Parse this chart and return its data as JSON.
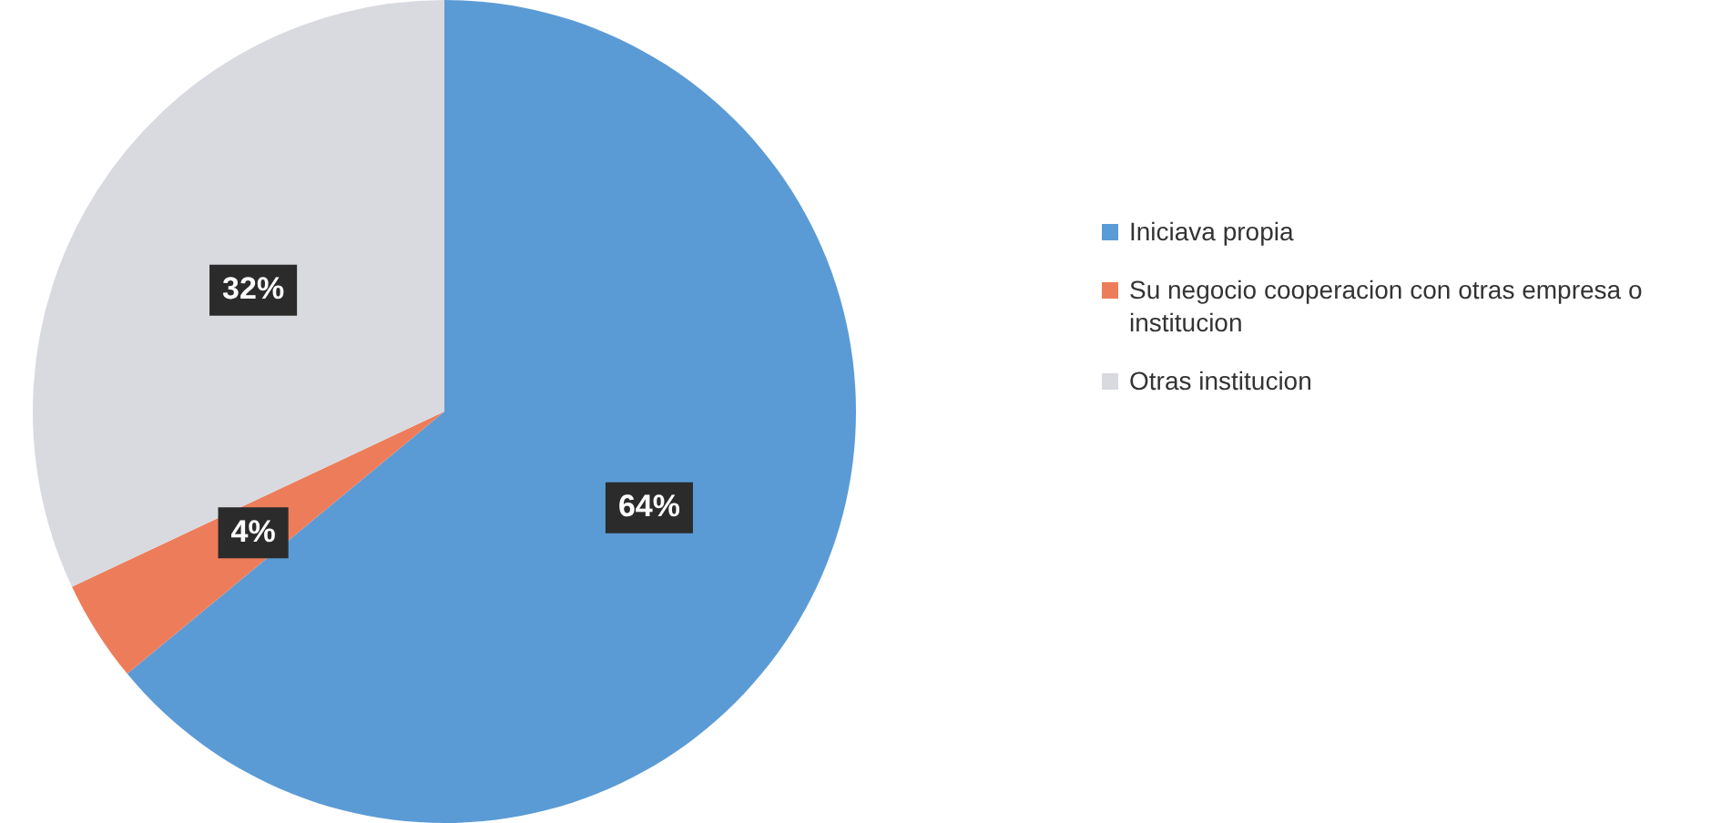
{
  "chart_data": {
    "type": "pie",
    "categories": [
      "Iniciava propia",
      "Su negocio cooperacion con otras empresa o institucion",
      "Otras institucion"
    ],
    "values": [
      64,
      4,
      32
    ],
    "colors": [
      "#5b9bd5",
      "#ed7d5a",
      "#d9d9e0"
    ],
    "value_labels": [
      "64%",
      "4%",
      "32%"
    ],
    "legend": "right"
  }
}
